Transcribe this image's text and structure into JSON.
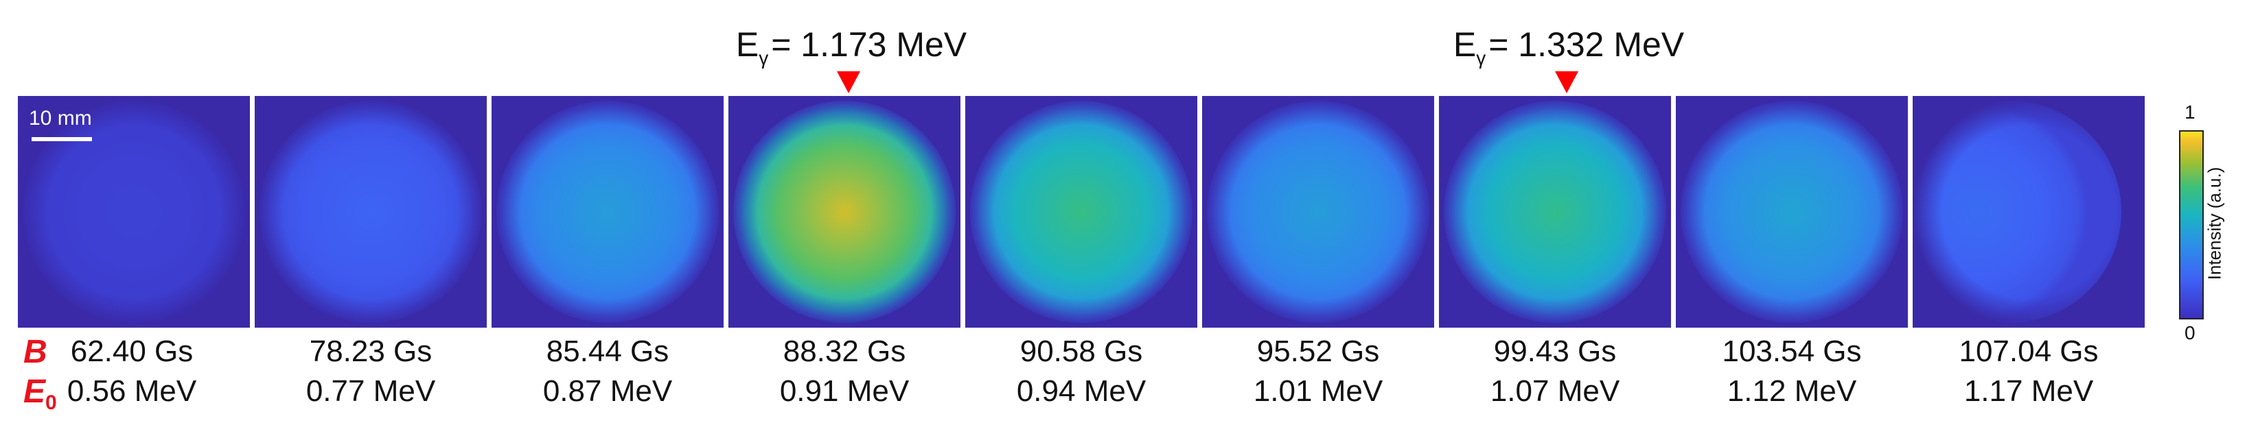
{
  "peaks": [
    {
      "prefix": "E",
      "sub": "γ",
      "text": "= 1.173 MeV"
    },
    {
      "prefix": "E",
      "sub": "γ",
      "text": "= 1.332 MeV"
    }
  ],
  "scale_bar": "10 mm",
  "row_labels": {
    "b": "B",
    "e_main": "E",
    "e_sub": "0"
  },
  "panels": [
    {
      "b": "62.40 Gs",
      "e0": "0.56 MeV",
      "intensity": 0.08
    },
    {
      "b": "78.23 Gs",
      "e0": "0.77 MeV",
      "intensity": 0.22
    },
    {
      "b": "85.44 Gs",
      "e0": "0.87 MeV",
      "intensity": 0.45
    },
    {
      "b": "88.32 Gs",
      "e0": "0.91 MeV",
      "intensity": 0.9
    },
    {
      "b": "90.58 Gs",
      "e0": "0.94 MeV",
      "intensity": 0.68
    },
    {
      "b": "95.52 Gs",
      "e0": "1.01 MeV",
      "intensity": 0.45
    },
    {
      "b": "99.43 Gs",
      "e0": "1.07 MeV",
      "intensity": 0.66
    },
    {
      "b": "103.54 Gs",
      "e0": "1.12 MeV",
      "intensity": 0.48
    },
    {
      "b": "107.04 Gs",
      "e0": "1.17 MeV",
      "intensity": 0.25
    }
  ],
  "colorbar": {
    "max": "1",
    "min": "0",
    "title": "Intensity (a.u.)"
  },
  "colors": {
    "background": "#3a2aa8",
    "marker": "#ff0000",
    "label_red": "#e8141d"
  }
}
